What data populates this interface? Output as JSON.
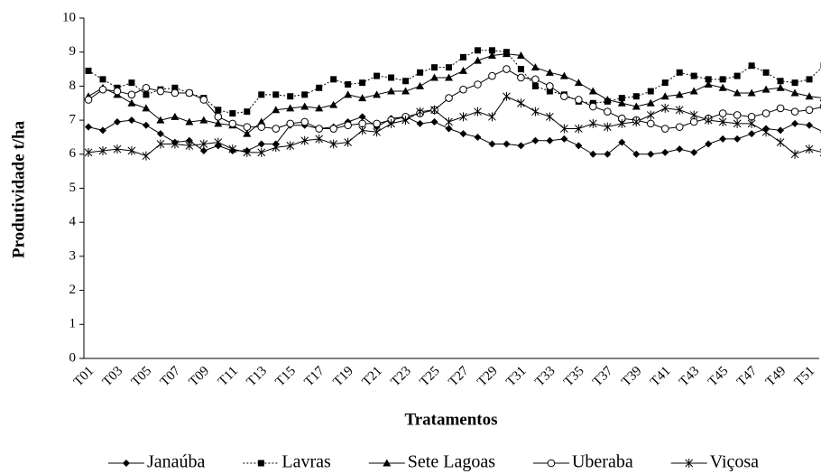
{
  "chart_data": {
    "type": "line",
    "x_label": "Tratamentos",
    "y_label": "Produtividade t/ha",
    "categories": [
      "T01",
      null,
      "T03",
      null,
      "T05",
      null,
      "T07",
      null,
      "T09",
      null,
      "T11",
      null,
      "T13",
      null,
      "T15",
      null,
      "T17",
      null,
      "T19",
      null,
      "T21",
      null,
      "T23",
      null,
      "T25",
      null,
      "T27",
      null,
      "T29",
      null,
      "T31",
      null,
      "T33",
      null,
      "T35",
      null,
      "T37",
      null,
      "T39",
      null,
      "T41",
      null,
      "T43",
      null,
      "T45",
      null,
      "T47",
      null,
      "T49",
      null,
      "T51",
      null
    ],
    "ylim": [
      0,
      10
    ],
    "yticks": [
      0,
      1,
      2,
      3,
      4,
      5,
      6,
      7,
      8,
      9,
      10
    ],
    "grid": false,
    "legend": "bottom",
    "series": [
      {
        "name": "Janaúba",
        "color": "#000000",
        "marker": "diamond",
        "dash": "solid",
        "values": [
          6.8,
          6.7,
          6.95,
          7.0,
          6.85,
          6.6,
          6.35,
          6.4,
          6.1,
          6.25,
          6.1,
          6.1,
          6.3,
          6.3,
          6.85,
          6.85,
          6.75,
          6.8,
          6.95,
          7.1,
          6.8,
          7.05,
          7.1,
          6.9,
          6.95,
          6.75,
          6.6,
          6.5,
          6.3,
          6.3,
          6.25,
          6.4,
          6.4,
          6.45,
          6.25,
          6.0,
          6.0,
          6.35,
          6.0,
          6.0,
          6.05,
          6.15,
          6.05,
          6.3,
          6.45,
          6.45,
          6.6,
          6.75,
          6.7,
          6.9,
          6.85,
          6.65
        ]
      },
      {
        "name": "Lavras",
        "color": "#000000",
        "marker": "square",
        "dash": "dotted",
        "values": [
          8.45,
          8.2,
          7.95,
          8.1,
          7.75,
          7.9,
          7.95,
          7.8,
          7.65,
          7.3,
          7.2,
          7.25,
          7.75,
          7.75,
          7.7,
          7.75,
          7.95,
          8.2,
          8.05,
          8.1,
          8.3,
          8.25,
          8.15,
          8.4,
          8.55,
          8.55,
          8.85,
          9.05,
          9.05,
          9.0,
          8.5,
          8.0,
          7.85,
          7.75,
          7.55,
          7.5,
          7.55,
          7.65,
          7.7,
          7.85,
          8.1,
          8.4,
          8.3,
          8.2,
          8.2,
          8.3,
          8.6,
          8.4,
          8.15,
          8.1,
          8.2,
          8.6
        ]
      },
      {
        "name": "Sete Lagoas",
        "color": "#000000",
        "marker": "triangle",
        "dash": "solid",
        "values": [
          7.7,
          7.95,
          7.75,
          7.5,
          7.35,
          7.0,
          7.1,
          6.95,
          7.0,
          6.9,
          6.85,
          6.6,
          6.95,
          7.3,
          7.35,
          7.4,
          7.35,
          7.45,
          7.75,
          7.65,
          7.75,
          7.85,
          7.85,
          8.0,
          8.25,
          8.25,
          8.45,
          8.75,
          8.9,
          8.95,
          8.9,
          8.55,
          8.4,
          8.3,
          8.1,
          7.85,
          7.6,
          7.5,
          7.4,
          7.5,
          7.7,
          7.75,
          7.85,
          8.05,
          7.95,
          7.8,
          7.8,
          7.9,
          7.95,
          7.8,
          7.7,
          7.65
        ]
      },
      {
        "name": "Uberaba",
        "color": "#000000",
        "marker": "circle-open",
        "dash": "solid",
        "values": [
          7.6,
          7.9,
          7.85,
          7.75,
          7.95,
          7.85,
          7.8,
          7.8,
          7.6,
          7.1,
          6.9,
          6.8,
          6.8,
          6.75,
          6.9,
          6.95,
          6.75,
          6.75,
          6.85,
          6.9,
          6.9,
          7.0,
          7.1,
          7.2,
          7.3,
          7.65,
          7.9,
          8.05,
          8.3,
          8.5,
          8.25,
          8.2,
          8.0,
          7.7,
          7.6,
          7.4,
          7.25,
          7.05,
          7.0,
          6.9,
          6.75,
          6.8,
          6.95,
          7.05,
          7.2,
          7.15,
          7.1,
          7.2,
          7.35,
          7.25,
          7.3,
          7.4
        ]
      },
      {
        "name": "Viçosa",
        "color": "#000000",
        "marker": "star",
        "dash": "solid",
        "values": [
          6.05,
          6.1,
          6.15,
          6.1,
          5.95,
          6.3,
          6.3,
          6.25,
          6.3,
          6.35,
          6.15,
          6.05,
          6.05,
          6.2,
          6.25,
          6.4,
          6.45,
          6.3,
          6.35,
          6.7,
          6.65,
          6.9,
          7.0,
          7.25,
          7.3,
          6.95,
          7.1,
          7.25,
          7.1,
          7.7,
          7.5,
          7.25,
          7.1,
          6.75,
          6.75,
          6.9,
          6.8,
          6.9,
          6.95,
          7.15,
          7.35,
          7.3,
          7.15,
          7.0,
          6.95,
          6.9,
          6.9,
          6.65,
          6.35,
          6.0,
          6.15,
          6.05
        ]
      }
    ]
  }
}
